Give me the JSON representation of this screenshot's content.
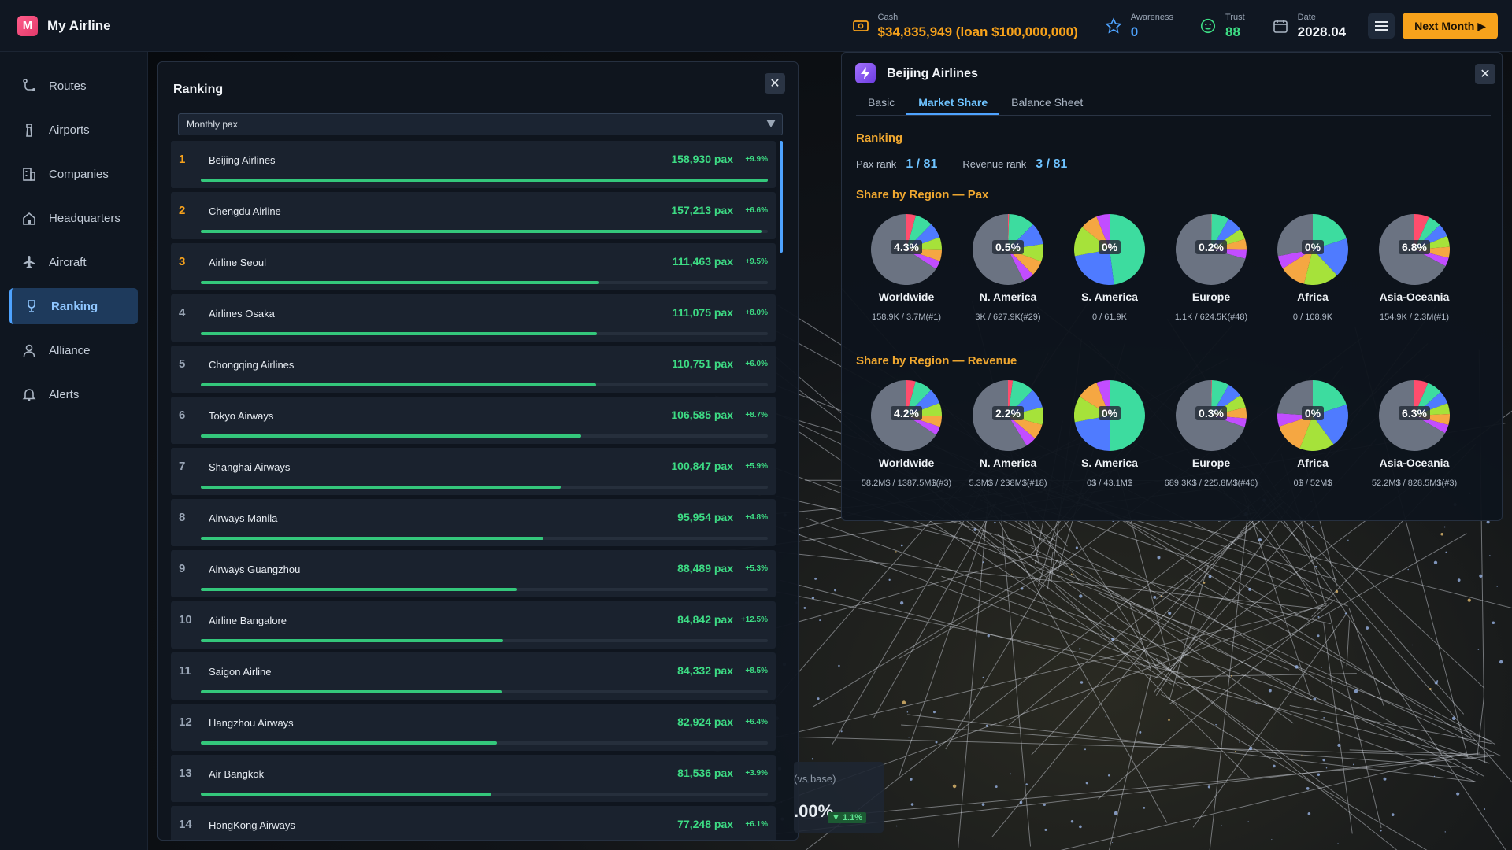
{
  "app": {
    "title": "My Airline",
    "logo_letter": "M"
  },
  "header": {
    "cash_label": "Cash",
    "cash_value": "$34,835,949 (loan $100,000,000)",
    "awareness_label": "Awareness",
    "awareness_value": "0",
    "trust_label": "Trust",
    "trust_value": "88",
    "date_label": "Date",
    "date_value": "2028.04",
    "next_label": "Next Month ▶"
  },
  "sidebar": {
    "items": [
      {
        "label": "Routes",
        "icon": "route-icon"
      },
      {
        "label": "Airports",
        "icon": "tower-icon"
      },
      {
        "label": "Companies",
        "icon": "building-icon"
      },
      {
        "label": "Headquarters",
        "icon": "home-icon"
      },
      {
        "label": "Aircraft",
        "icon": "plane-icon"
      },
      {
        "label": "Ranking",
        "icon": "trophy-icon",
        "active": true
      },
      {
        "label": "Alliance",
        "icon": "user-icon"
      },
      {
        "label": "Alerts",
        "icon": "bell-icon"
      }
    ]
  },
  "ranking": {
    "title": "Ranking",
    "select_value": "Monthly pax",
    "close": "✕",
    "rows": [
      {
        "rank": "1",
        "name": "Beijing Airlines",
        "pax": "158,930 pax",
        "growth": "+9.9%",
        "bar": 1.0
      },
      {
        "rank": "2",
        "name": "Chengdu Airline",
        "pax": "157,213 pax",
        "growth": "+6.6%",
        "bar": 0.989
      },
      {
        "rank": "3",
        "name": "Airline Seoul",
        "pax": "111,463 pax",
        "growth": "+9.5%",
        "bar": 0.701
      },
      {
        "rank": "4",
        "name": "Airlines Osaka",
        "pax": "111,075 pax",
        "growth": "+8.0%",
        "bar": 0.699
      },
      {
        "rank": "5",
        "name": "Chongqing Airlines",
        "pax": "110,751 pax",
        "growth": "+6.0%",
        "bar": 0.697
      },
      {
        "rank": "6",
        "name": "Tokyo Airways",
        "pax": "106,585 pax",
        "growth": "+8.7%",
        "bar": 0.671
      },
      {
        "rank": "7",
        "name": "Shanghai Airways",
        "pax": "100,847 pax",
        "growth": "+5.9%",
        "bar": 0.635
      },
      {
        "rank": "8",
        "name": "Airways Manila",
        "pax": "95,954 pax",
        "growth": "+4.8%",
        "bar": 0.604
      },
      {
        "rank": "9",
        "name": "Airways Guangzhou",
        "pax": "88,489 pax",
        "growth": "+5.3%",
        "bar": 0.557
      },
      {
        "rank": "10",
        "name": "Airline Bangalore",
        "pax": "84,842 pax",
        "growth": "+12.5%",
        "bar": 0.534
      },
      {
        "rank": "11",
        "name": "Saigon Airline",
        "pax": "84,332 pax",
        "growth": "+8.5%",
        "bar": 0.531
      },
      {
        "rank": "12",
        "name": "Hangzhou Airways",
        "pax": "82,924 pax",
        "growth": "+6.4%",
        "bar": 0.522
      },
      {
        "rank": "13",
        "name": "Air Bangkok",
        "pax": "81,536 pax",
        "growth": "+3.9%",
        "bar": 0.513
      },
      {
        "rank": "14",
        "name": "HongKong Airways",
        "pax": "77,248 pax",
        "growth": "+6.1%",
        "bar": 0.486
      }
    ]
  },
  "company": {
    "name": "Beijing Airlines",
    "close": "✕",
    "tabs": [
      "Basic",
      "Market Share",
      "Balance Sheet"
    ],
    "active_tab": "Market Share",
    "ranking_heading": "Ranking",
    "pax_rank_label": "Pax rank",
    "pax_rank_value": "1 / 81",
    "revenue_rank_label": "Revenue rank",
    "revenue_rank_value": "3 / 81",
    "pax_heading": "Share by Region — Pax",
    "revenue_heading": "Share by Region — Revenue",
    "pax_pies": [
      {
        "region": "Worldwide",
        "pct": "4.3%",
        "sub": "158.9K / 3.7M(#1)",
        "slices": [
          0.043,
          0.08,
          0.07,
          0.06,
          0.05,
          0.04,
          0.657
        ]
      },
      {
        "region": "N. America",
        "pct": "0.5%",
        "sub": "3K / 627.9K(#29)",
        "slices": [
          0.005,
          0.12,
          0.1,
          0.08,
          0.07,
          0.05,
          0.575
        ]
      },
      {
        "region": "S. America",
        "pct": "0%",
        "sub": "0 / 61.9K",
        "slices": [
          0.0,
          0.48,
          0.24,
          0.14,
          0.08,
          0.06,
          0.0
        ]
      },
      {
        "region": "Europe",
        "pct": "0.2%",
        "sub": "1.1K / 624.5K(#48)",
        "slices": [
          0.002,
          0.08,
          0.07,
          0.05,
          0.05,
          0.04,
          0.708
        ]
      },
      {
        "region": "Africa",
        "pct": "0%",
        "sub": "0 / 108.9K",
        "slices": [
          0.0,
          0.2,
          0.18,
          0.16,
          0.12,
          0.06,
          0.28
        ]
      },
      {
        "region": "Asia-Oceania",
        "pct": "6.8%",
        "sub": "154.9K / 2.3M(#1)",
        "slices": [
          0.068,
          0.06,
          0.06,
          0.05,
          0.05,
          0.04,
          0.672
        ]
      }
    ],
    "revenue_pies": [
      {
        "region": "Worldwide",
        "pct": "4.2%",
        "sub": "58.2M$ / 1387.5M$(#3)",
        "slices": [
          0.042,
          0.08,
          0.07,
          0.06,
          0.05,
          0.04,
          0.658
        ]
      },
      {
        "region": "N. America",
        "pct": "2.2%",
        "sub": "5.3M$ / 238M$(#18)",
        "slices": [
          0.022,
          0.1,
          0.09,
          0.08,
          0.07,
          0.05,
          0.588
        ]
      },
      {
        "region": "S. America",
        "pct": "0%",
        "sub": "0$ / 43.1M$",
        "slices": [
          0.0,
          0.5,
          0.22,
          0.12,
          0.1,
          0.06,
          0.0
        ]
      },
      {
        "region": "Europe",
        "pct": "0.3%",
        "sub": "689.3K$ / 225.8M$(#46)",
        "slices": [
          0.003,
          0.08,
          0.07,
          0.06,
          0.05,
          0.04,
          0.697
        ]
      },
      {
        "region": "Africa",
        "pct": "0%",
        "sub": "0$ / 52M$",
        "slices": [
          0.0,
          0.2,
          0.2,
          0.16,
          0.14,
          0.06,
          0.24
        ]
      },
      {
        "region": "Asia-Oceania",
        "pct": "6.3%",
        "sub": "52.2M$ / 828.5M$(#3)",
        "slices": [
          0.063,
          0.07,
          0.06,
          0.05,
          0.05,
          0.04,
          0.667
        ]
      }
    ]
  },
  "tooltip": {
    "label": "(vs base)",
    "value": ".00%",
    "delta": "▼ 1.1%"
  },
  "colors": {
    "accent": "#4ea3ff",
    "gold": "#f7a21b",
    "green": "#3ddc84",
    "pie_palette": [
      "#ff4d6d",
      "#3ddc9f",
      "#4f7bff",
      "#a6e23a",
      "#f5a742",
      "#c24dff",
      "#6b7382"
    ]
  }
}
